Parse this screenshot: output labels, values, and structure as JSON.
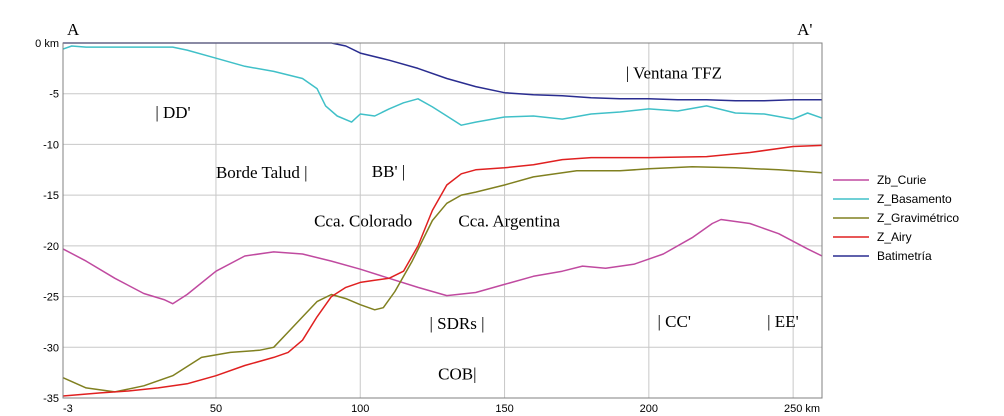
{
  "chart_data": {
    "type": "line",
    "title": "",
    "xlabel": "",
    "ylabel": "",
    "x_unit": "km",
    "y_unit": "km",
    "xlim": [
      -3,
      260
    ],
    "ylim": [
      -35,
      0
    ],
    "x_ticks": [
      {
        "value": -3,
        "label": "-3"
      },
      {
        "value": 50,
        "label": "50"
      },
      {
        "value": 100,
        "label": "100"
      },
      {
        "value": 150,
        "label": "150"
      },
      {
        "value": 200,
        "label": "200"
      },
      {
        "value": 250,
        "label": "250"
      }
    ],
    "y_ticks": [
      {
        "value": 0,
        "label": "0 km"
      },
      {
        "value": -5,
        "label": "-5"
      },
      {
        "value": -10,
        "label": "-10"
      },
      {
        "value": -15,
        "label": "-15"
      },
      {
        "value": -20,
        "label": "-20"
      },
      {
        "value": -25,
        "label": "-25"
      },
      {
        "value": -30,
        "label": "-30"
      },
      {
        "value": -35,
        "label": "-35"
      }
    ],
    "grid": true,
    "legend_position": "right",
    "series": [
      {
        "name": "Zb_Curie",
        "color": "#c04aa0",
        "x": [
          -3,
          5,
          15,
          25,
          32,
          35,
          40,
          50,
          60,
          70,
          80,
          90,
          100,
          110,
          120,
          130,
          140,
          150,
          160,
          170,
          177,
          185,
          195,
          205,
          215,
          222,
          225,
          235,
          245,
          255,
          260
        ],
        "y": [
          -20.3,
          -21.5,
          -23.2,
          -24.7,
          -25.3,
          -25.7,
          -24.8,
          -22.5,
          -21.0,
          -20.6,
          -20.8,
          -21.5,
          -22.3,
          -23.2,
          -24.1,
          -24.9,
          -24.6,
          -23.8,
          -23.0,
          -22.5,
          -22.0,
          -22.2,
          -21.8,
          -20.8,
          -19.2,
          -17.8,
          -17.4,
          -17.8,
          -18.8,
          -20.3,
          -21.0
        ]
      },
      {
        "name": "Z_Basamento",
        "color": "#40c0c8",
        "x": [
          -3,
          0,
          5,
          20,
          35,
          40,
          50,
          60,
          70,
          80,
          85,
          88,
          92,
          97,
          100,
          105,
          110,
          115,
          120,
          125,
          130,
          135,
          140,
          150,
          160,
          170,
          180,
          190,
          200,
          210,
          220,
          230,
          240,
          250,
          255,
          260
        ],
        "y": [
          -0.6,
          -0.3,
          -0.4,
          -0.4,
          -0.4,
          -0.7,
          -1.5,
          -2.3,
          -2.8,
          -3.5,
          -4.5,
          -6.2,
          -7.2,
          -7.8,
          -7.0,
          -7.2,
          -6.5,
          -5.9,
          -5.5,
          -6.3,
          -7.2,
          -8.1,
          -7.8,
          -7.3,
          -7.2,
          -7.5,
          -7.0,
          -6.8,
          -6.5,
          -6.7,
          -6.2,
          -6.9,
          -7.0,
          -7.5,
          -6.9,
          -7.4
        ]
      },
      {
        "name": "Z_Gravimétrico",
        "color": "#808020",
        "x": [
          -3,
          5,
          15,
          25,
          35,
          45,
          55,
          65,
          70,
          75,
          80,
          85,
          90,
          95,
          100,
          105,
          108,
          112,
          118,
          125,
          130,
          135,
          140,
          150,
          160,
          175,
          190,
          200,
          215,
          230,
          245,
          260
        ],
        "y": [
          -33.0,
          -34.0,
          -34.4,
          -33.8,
          -32.8,
          -31.0,
          -30.5,
          -30.3,
          -30.0,
          -28.5,
          -27.0,
          -25.5,
          -24.8,
          -25.2,
          -25.8,
          -26.3,
          -26.1,
          -24.5,
          -21.5,
          -17.5,
          -15.8,
          -15.0,
          -14.7,
          -14.0,
          -13.2,
          -12.6,
          -12.6,
          -12.4,
          -12.2,
          -12.3,
          -12.5,
          -12.8
        ]
      },
      {
        "name": "Z_Airy",
        "color": "#e02020",
        "x": [
          -3,
          10,
          20,
          30,
          40,
          50,
          60,
          70,
          75,
          80,
          85,
          90,
          95,
          100,
          105,
          110,
          115,
          120,
          125,
          130,
          135,
          140,
          150,
          160,
          170,
          180,
          200,
          220,
          235,
          250,
          260
        ],
        "y": [
          -34.8,
          -34.5,
          -34.3,
          -34.0,
          -33.6,
          -32.8,
          -31.8,
          -31.0,
          -30.5,
          -29.3,
          -27.0,
          -25.0,
          -24.1,
          -23.6,
          -23.4,
          -23.2,
          -22.5,
          -20.0,
          -16.5,
          -14.0,
          -12.9,
          -12.5,
          -12.3,
          -12.0,
          -11.5,
          -11.3,
          -11.3,
          -11.2,
          -10.8,
          -10.2,
          -10.1
        ]
      },
      {
        "name": "Batimetría",
        "color": "#2a2d90",
        "x": [
          -3,
          10,
          20,
          40,
          60,
          80,
          90,
          95,
          100,
          110,
          120,
          130,
          140,
          150,
          160,
          170,
          180,
          190,
          200,
          210,
          220,
          230,
          240,
          250,
          260
        ],
        "y": [
          0,
          0,
          0,
          0,
          0,
          0,
          0,
          -0.3,
          -1.0,
          -1.7,
          -2.5,
          -3.5,
          -4.3,
          -4.9,
          -5.1,
          -5.2,
          -5.4,
          -5.5,
          -5.5,
          -5.6,
          -5.6,
          -5.7,
          -5.7,
          -5.6,
          -5.6
        ]
      }
    ],
    "annotations": [
      {
        "text": "A",
        "x": -3,
        "y": 0,
        "role": "corner"
      },
      {
        "text": "A'",
        "x": 250,
        "y": 0,
        "role": "corner"
      },
      {
        "text": "| Ventana TFZ",
        "x": 192,
        "y": -3.5
      },
      {
        "text": "| DD'",
        "x": 29,
        "y": -7.4
      },
      {
        "text": "Borde Talud |",
        "x": 50,
        "y": -13.3
      },
      {
        "text": "BB' |",
        "x": 104,
        "y": -13.2
      },
      {
        "text": "Cca. Colorado",
        "x": 84,
        "y": -18.1
      },
      {
        "text": "Cca. Argentina",
        "x": 134,
        "y": -18.1
      },
      {
        "text": "| SDRs |",
        "x": 124,
        "y": -28.2
      },
      {
        "text": "| CC'",
        "x": 203,
        "y": -28.0
      },
      {
        "text": "| EE'",
        "x": 241,
        "y": -28.0
      },
      {
        "text": "COB|",
        "x": 127,
        "y": -33.2
      }
    ]
  }
}
